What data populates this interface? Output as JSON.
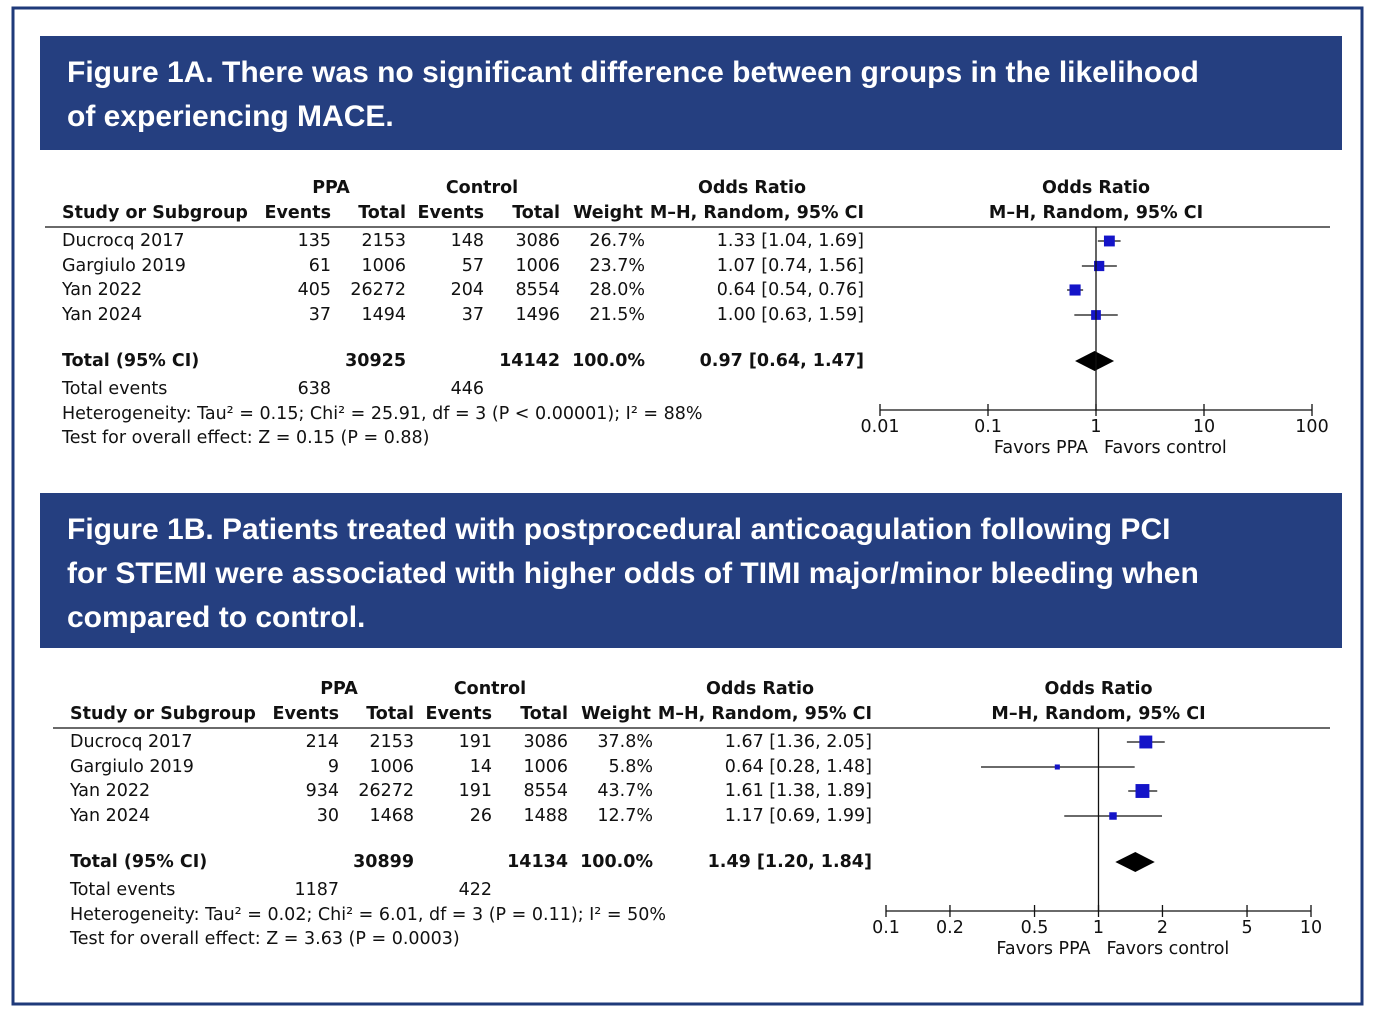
{
  "chart_data": [
    {
      "type": "forest",
      "title": [
        "Figure 1A. There was no significant difference between groups in the likelihood",
        "of experiencing MACE."
      ],
      "header_top": [
        "PPA",
        "Control",
        "Odds Ratio",
        "Odds Ratio"
      ],
      "header": [
        "Study or Subgroup",
        "Events",
        "Total",
        "Events",
        "Total",
        "Weight",
        "M–H, Random, 95% CI",
        "M–H, Random, 95% CI"
      ],
      "studies": [
        {
          "cells": [
            "Ducrocq 2017",
            "135",
            "2153",
            "148",
            "3086",
            "26.7%",
            "1.33 [1.04, 1.69]"
          ],
          "or": 1.33,
          "ci": [
            1.04,
            1.69
          ],
          "weight": 26.7
        },
        {
          "cells": [
            "Gargiulo 2019",
            "61",
            "1006",
            "57",
            "1006",
            "23.7%",
            "1.07 [0.74, 1.56]"
          ],
          "or": 1.07,
          "ci": [
            0.74,
            1.56
          ],
          "weight": 23.7
        },
        {
          "cells": [
            "Yan 2022",
            "405",
            "26272",
            "204",
            "8554",
            "28.0%",
            "0.64 [0.54, 0.76]"
          ],
          "or": 0.64,
          "ci": [
            0.54,
            0.76
          ],
          "weight": 28.0
        },
        {
          "cells": [
            "Yan 2024",
            "37",
            "1494",
            "37",
            "1496",
            "21.5%",
            "1.00 [0.63, 1.59]"
          ],
          "or": 1.0,
          "ci": [
            0.63,
            1.59
          ],
          "weight": 21.5
        }
      ],
      "total": {
        "cells": [
          "Total (95% CI)",
          "30925",
          "14142",
          "100.0%",
          "0.97 [0.64, 1.47]"
        ],
        "or": 0.97,
        "ci": [
          0.64,
          1.47
        ]
      },
      "total_events": [
        "Total events",
        "638",
        "446"
      ],
      "heterogeneity": "Heterogeneity: Tau² = 0.15; Chi² = 25.91, df = 3 (P < 0.00001); I² = 88%",
      "overall_effect": "Test for overall effect: Z = 0.15 (P = 0.88)",
      "log_scale": true,
      "xlim": [
        0.01,
        100
      ],
      "xticks": [
        0.01,
        0.1,
        1,
        10,
        100
      ],
      "favors": [
        "Favors PPA",
        "Favors control"
      ]
    },
    {
      "type": "forest",
      "title": [
        "Figure 1B. Patients treated with postprocedural anticoagulation following PCI",
        "for STEMI were associated with higher odds of TIMI major/minor bleeding when",
        "compared to control."
      ],
      "header_top": [
        "PPA",
        "Control",
        "Odds Ratio",
        "Odds Ratio"
      ],
      "header": [
        "Study or Subgroup",
        "Events",
        "Total",
        "Events",
        "Total",
        "Weight",
        "M–H, Random, 95% CI",
        "M–H, Random, 95% CI"
      ],
      "studies": [
        {
          "cells": [
            "Ducrocq 2017",
            "214",
            "2153",
            "191",
            "3086",
            "37.8%",
            "1.67 [1.36, 2.05]"
          ],
          "or": 1.67,
          "ci": [
            1.36,
            2.05
          ],
          "weight": 37.8
        },
        {
          "cells": [
            "Gargiulo 2019",
            "9",
            "1006",
            "14",
            "1006",
            "5.8%",
            "0.64 [0.28, 1.48]"
          ],
          "or": 0.64,
          "ci": [
            0.28,
            1.48
          ],
          "weight": 5.8
        },
        {
          "cells": [
            "Yan 2022",
            "934",
            "26272",
            "191",
            "8554",
            "43.7%",
            "1.61 [1.38, 1.89]"
          ],
          "or": 1.61,
          "ci": [
            1.38,
            1.89
          ],
          "weight": 43.7
        },
        {
          "cells": [
            "Yan 2024",
            "30",
            "1468",
            "26",
            "1488",
            "12.7%",
            "1.17 [0.69, 1.99]"
          ],
          "or": 1.17,
          "ci": [
            0.69,
            1.99
          ],
          "weight": 12.7
        }
      ],
      "total": {
        "cells": [
          "Total (95% CI)",
          "30899",
          "14134",
          "100.0%",
          "1.49 [1.20, 1.84]"
        ],
        "or": 1.49,
        "ci": [
          1.2,
          1.84
        ]
      },
      "total_events": [
        "Total events",
        "1187",
        "422"
      ],
      "heterogeneity": "Heterogeneity: Tau² = 0.02; Chi² = 6.01, df = 3 (P = 0.11); I² = 50%",
      "overall_effect": "Test for overall effect: Z = 3.63 (P = 0.0003)",
      "log_scale": true,
      "xlim": [
        0.1,
        10
      ],
      "xticks": [
        0.1,
        0.2,
        0.5,
        1,
        2,
        5,
        10
      ],
      "favors": [
        "Favors PPA",
        "Favors control"
      ]
    }
  ]
}
